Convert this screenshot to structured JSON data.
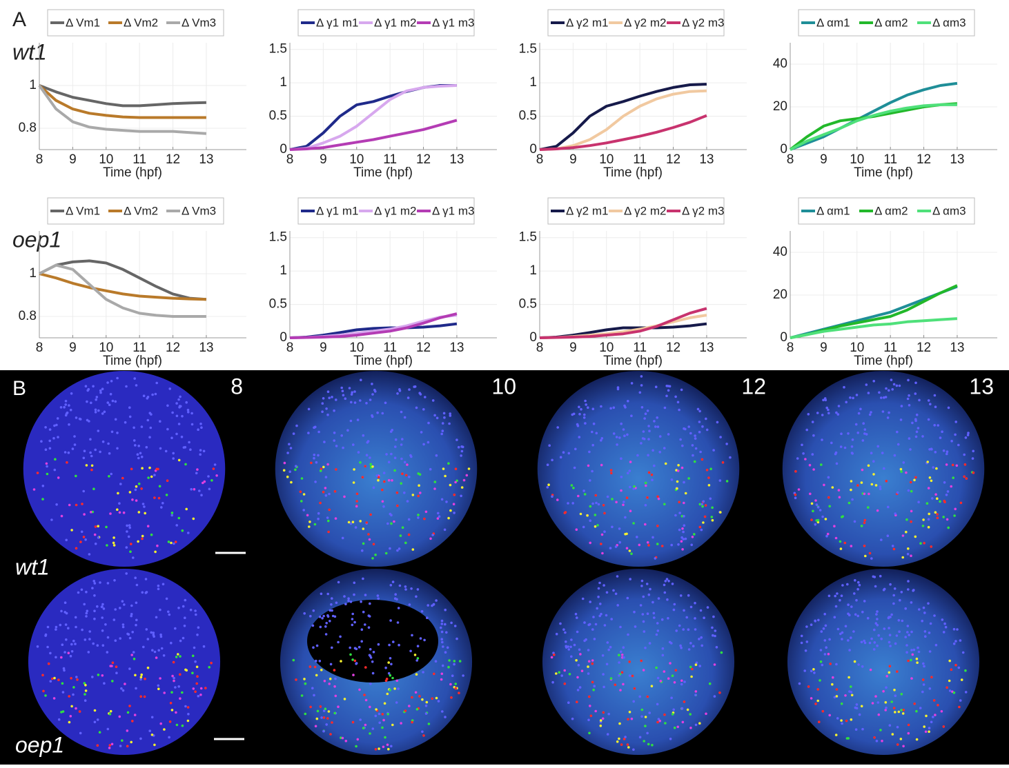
{
  "panel_a": {
    "label": "A",
    "row_labels": [
      "wt1",
      "oep1"
    ]
  },
  "chart_data": [
    {
      "type": "line",
      "x_label": "Time (hpf)",
      "x": [
        8,
        8.5,
        9,
        9.5,
        10,
        10.5,
        11,
        11.5,
        12,
        12.5,
        13
      ],
      "xlim": [
        8,
        14.2
      ],
      "xticks": [
        8,
        9,
        10,
        11,
        12,
        13
      ],
      "ylim": [
        0.7,
        1.2
      ],
      "yticks": [
        0.8,
        1
      ],
      "grid": true,
      "legend": "top",
      "series": [
        {
          "name": "Δ Vm1",
          "color": "#666666",
          "values": [
            1,
            0.97,
            0.945,
            0.93,
            0.915,
            0.905,
            0.905,
            0.91,
            0.915,
            0.918,
            0.92
          ]
        },
        {
          "name": "Δ Vm2",
          "color": "#b97a2a",
          "values": [
            1,
            0.93,
            0.89,
            0.87,
            0.86,
            0.853,
            0.85,
            0.85,
            0.85,
            0.85,
            0.85
          ]
        },
        {
          "name": "Δ Vm3",
          "color": "#a9a9a9",
          "values": [
            1,
            0.89,
            0.83,
            0.805,
            0.795,
            0.79,
            0.785,
            0.785,
            0.785,
            0.78,
            0.775
          ]
        }
      ]
    },
    {
      "type": "line",
      "x_label": "Time (hpf)",
      "x": [
        8,
        8.5,
        9,
        9.5,
        10,
        10.5,
        11,
        11.5,
        12,
        12.5,
        13
      ],
      "xlim": [
        8,
        14.2
      ],
      "xticks": [
        8,
        9,
        10,
        11,
        12,
        13
      ],
      "ylim": [
        0,
        1.6
      ],
      "yticks": [
        0,
        0.5,
        1,
        1.5
      ],
      "grid": true,
      "legend": "top",
      "series": [
        {
          "name": "Δ γ1 m1",
          "color": "#1f2a8a",
          "values": [
            0,
            0.05,
            0.25,
            0.5,
            0.67,
            0.72,
            0.8,
            0.87,
            0.93,
            0.96,
            0.96
          ]
        },
        {
          "name": "Δ γ1 m2",
          "color": "#d7a8ee",
          "values": [
            0,
            0.02,
            0.1,
            0.2,
            0.35,
            0.55,
            0.75,
            0.88,
            0.93,
            0.95,
            0.96
          ]
        },
        {
          "name": "Δ γ1 m3",
          "color": "#b43cb4",
          "values": [
            0,
            0.01,
            0.03,
            0.07,
            0.11,
            0.15,
            0.2,
            0.25,
            0.3,
            0.37,
            0.44
          ]
        }
      ]
    },
    {
      "type": "line",
      "x_label": "Time (hpf)",
      "x": [
        8,
        8.5,
        9,
        9.5,
        10,
        10.5,
        11,
        11.5,
        12,
        12.5,
        13
      ],
      "xlim": [
        8,
        14.2
      ],
      "xticks": [
        8,
        9,
        10,
        11,
        12,
        13
      ],
      "ylim": [
        0,
        1.6
      ],
      "yticks": [
        0,
        0.5,
        1,
        1.5
      ],
      "grid": true,
      "legend": "top",
      "series": [
        {
          "name": "Δ γ2 m1",
          "color": "#161a4a",
          "values": [
            0,
            0.05,
            0.25,
            0.5,
            0.65,
            0.72,
            0.8,
            0.87,
            0.93,
            0.97,
            0.98
          ]
        },
        {
          "name": "Δ γ2 m2",
          "color": "#f1c9a0",
          "values": [
            0,
            0.01,
            0.06,
            0.15,
            0.3,
            0.5,
            0.65,
            0.76,
            0.83,
            0.87,
            0.88
          ]
        },
        {
          "name": "Δ γ2 m3",
          "color": "#c8336e",
          "values": [
            0,
            0.01,
            0.03,
            0.06,
            0.1,
            0.15,
            0.2,
            0.26,
            0.33,
            0.41,
            0.51
          ]
        }
      ]
    },
    {
      "type": "line",
      "x_label": "Time (hpf)",
      "x": [
        8,
        8.5,
        9,
        9.5,
        10,
        10.5,
        11,
        11.5,
        12,
        12.5,
        13
      ],
      "xlim": [
        8,
        14.2
      ],
      "xticks": [
        8,
        9,
        10,
        11,
        12,
        13
      ],
      "ylim": [
        0,
        50
      ],
      "yticks": [
        0,
        20,
        40
      ],
      "grid": true,
      "legend": "top",
      "series": [
        {
          "name": "Δ αm1",
          "color": "#1f8e98",
          "values": [
            0,
            3,
            6,
            10,
            14,
            18,
            22,
            25.5,
            28,
            30,
            31
          ]
        },
        {
          "name": "Δ αm2",
          "color": "#22b82a",
          "values": [
            0,
            6,
            11,
            13.5,
            14.5,
            15.5,
            17,
            18.5,
            20,
            21,
            21.5
          ]
        },
        {
          "name": "Δ αm3",
          "color": "#4fe07a",
          "values": [
            0,
            4,
            7,
            10,
            13.5,
            16,
            18,
            19.5,
            20.5,
            21,
            21
          ]
        }
      ]
    },
    {
      "type": "line",
      "x_label": "Time (hpf)",
      "x": [
        8,
        8.5,
        9,
        9.5,
        10,
        10.5,
        11,
        11.5,
        12,
        12.5,
        13
      ],
      "xlim": [
        8,
        14.2
      ],
      "xticks": [
        8,
        9,
        10,
        11,
        12,
        13
      ],
      "ylim": [
        0.7,
        1.2
      ],
      "yticks": [
        0.8,
        1
      ],
      "grid": true,
      "legend": "top",
      "series": [
        {
          "name": "Δ Vm1",
          "color": "#666666",
          "values": [
            1,
            1.04,
            1.055,
            1.06,
            1.05,
            1.02,
            0.98,
            0.94,
            0.905,
            0.885,
            0.88
          ]
        },
        {
          "name": "Δ Vm2",
          "color": "#b97a2a",
          "values": [
            1,
            0.98,
            0.955,
            0.935,
            0.92,
            0.905,
            0.895,
            0.89,
            0.885,
            0.882,
            0.88
          ]
        },
        {
          "name": "Δ Vm3",
          "color": "#a9a9a9",
          "values": [
            1,
            1.04,
            1.02,
            0.95,
            0.88,
            0.84,
            0.815,
            0.805,
            0.8,
            0.8,
            0.8
          ]
        }
      ]
    },
    {
      "type": "line",
      "x_label": "Time (hpf)",
      "x": [
        8,
        8.5,
        9,
        9.5,
        10,
        10.5,
        11,
        11.5,
        12,
        12.5,
        13
      ],
      "xlim": [
        8,
        14.2
      ],
      "xticks": [
        8,
        9,
        10,
        11,
        12,
        13
      ],
      "ylim": [
        0,
        1.6
      ],
      "yticks": [
        0,
        0.5,
        1,
        1.5
      ],
      "grid": true,
      "legend": "top",
      "series": [
        {
          "name": "Δ γ1 m1",
          "color": "#1f2a8a",
          "values": [
            0,
            0.01,
            0.04,
            0.08,
            0.12,
            0.14,
            0.15,
            0.15,
            0.16,
            0.18,
            0.21
          ]
        },
        {
          "name": "Δ γ1 m2",
          "color": "#d7a8ee",
          "values": [
            0,
            0.005,
            0.02,
            0.04,
            0.07,
            0.1,
            0.13,
            0.18,
            0.25,
            0.31,
            0.34
          ]
        },
        {
          "name": "Δ γ1 m3",
          "color": "#b43cb4",
          "values": [
            0,
            0.005,
            0.01,
            0.02,
            0.04,
            0.07,
            0.1,
            0.15,
            0.22,
            0.3,
            0.36
          ]
        }
      ]
    },
    {
      "type": "line",
      "x_label": "Time (hpf)",
      "x": [
        8,
        8.5,
        9,
        9.5,
        10,
        10.5,
        11,
        11.5,
        12,
        12.5,
        13
      ],
      "xlim": [
        8,
        14.2
      ],
      "xticks": [
        8,
        9,
        10,
        11,
        12,
        13
      ],
      "ylim": [
        0,
        1.6
      ],
      "yticks": [
        0,
        0.5,
        1,
        1.5
      ],
      "grid": true,
      "legend": "top",
      "series": [
        {
          "name": "Δ γ2 m1",
          "color": "#161a4a",
          "values": [
            0,
            0.01,
            0.04,
            0.08,
            0.12,
            0.15,
            0.15,
            0.15,
            0.16,
            0.18,
            0.21
          ]
        },
        {
          "name": "Δ γ2 m2",
          "color": "#f1c9a0",
          "values": [
            0,
            0.005,
            0.02,
            0.04,
            0.06,
            0.09,
            0.13,
            0.18,
            0.24,
            0.3,
            0.34
          ]
        },
        {
          "name": "Δ γ2 m3",
          "color": "#c8336e",
          "values": [
            0,
            0.005,
            0.01,
            0.02,
            0.04,
            0.06,
            0.1,
            0.17,
            0.27,
            0.37,
            0.44
          ]
        }
      ]
    },
    {
      "type": "line",
      "x_label": "Time (hpf)",
      "x": [
        8,
        8.5,
        9,
        9.5,
        10,
        10.5,
        11,
        11.5,
        12,
        12.5,
        13
      ],
      "xlim": [
        8,
        14.2
      ],
      "xticks": [
        8,
        9,
        10,
        11,
        12,
        13
      ],
      "ylim": [
        0,
        50
      ],
      "yticks": [
        0,
        20,
        40
      ],
      "grid": true,
      "legend": "top",
      "series": [
        {
          "name": "Δ αm1",
          "color": "#1f8e98",
          "values": [
            0,
            2,
            4,
            6,
            8,
            10,
            12,
            15,
            18,
            21,
            24
          ]
        },
        {
          "name": "Δ αm2",
          "color": "#22b82a",
          "values": [
            0,
            1.5,
            3.5,
            5.5,
            7,
            8.5,
            10,
            13,
            17,
            21,
            24.5
          ]
        },
        {
          "name": "Δ αm3",
          "color": "#4fe07a",
          "values": [
            0,
            1.5,
            3,
            4,
            5,
            6,
            6.5,
            7.5,
            8,
            8.5,
            9
          ]
        }
      ]
    }
  ],
  "panel_b": {
    "label": "B",
    "time_labels": [
      "8",
      "10",
      "12",
      "13"
    ],
    "row_labels": [
      "wt1",
      "oep1"
    ]
  }
}
